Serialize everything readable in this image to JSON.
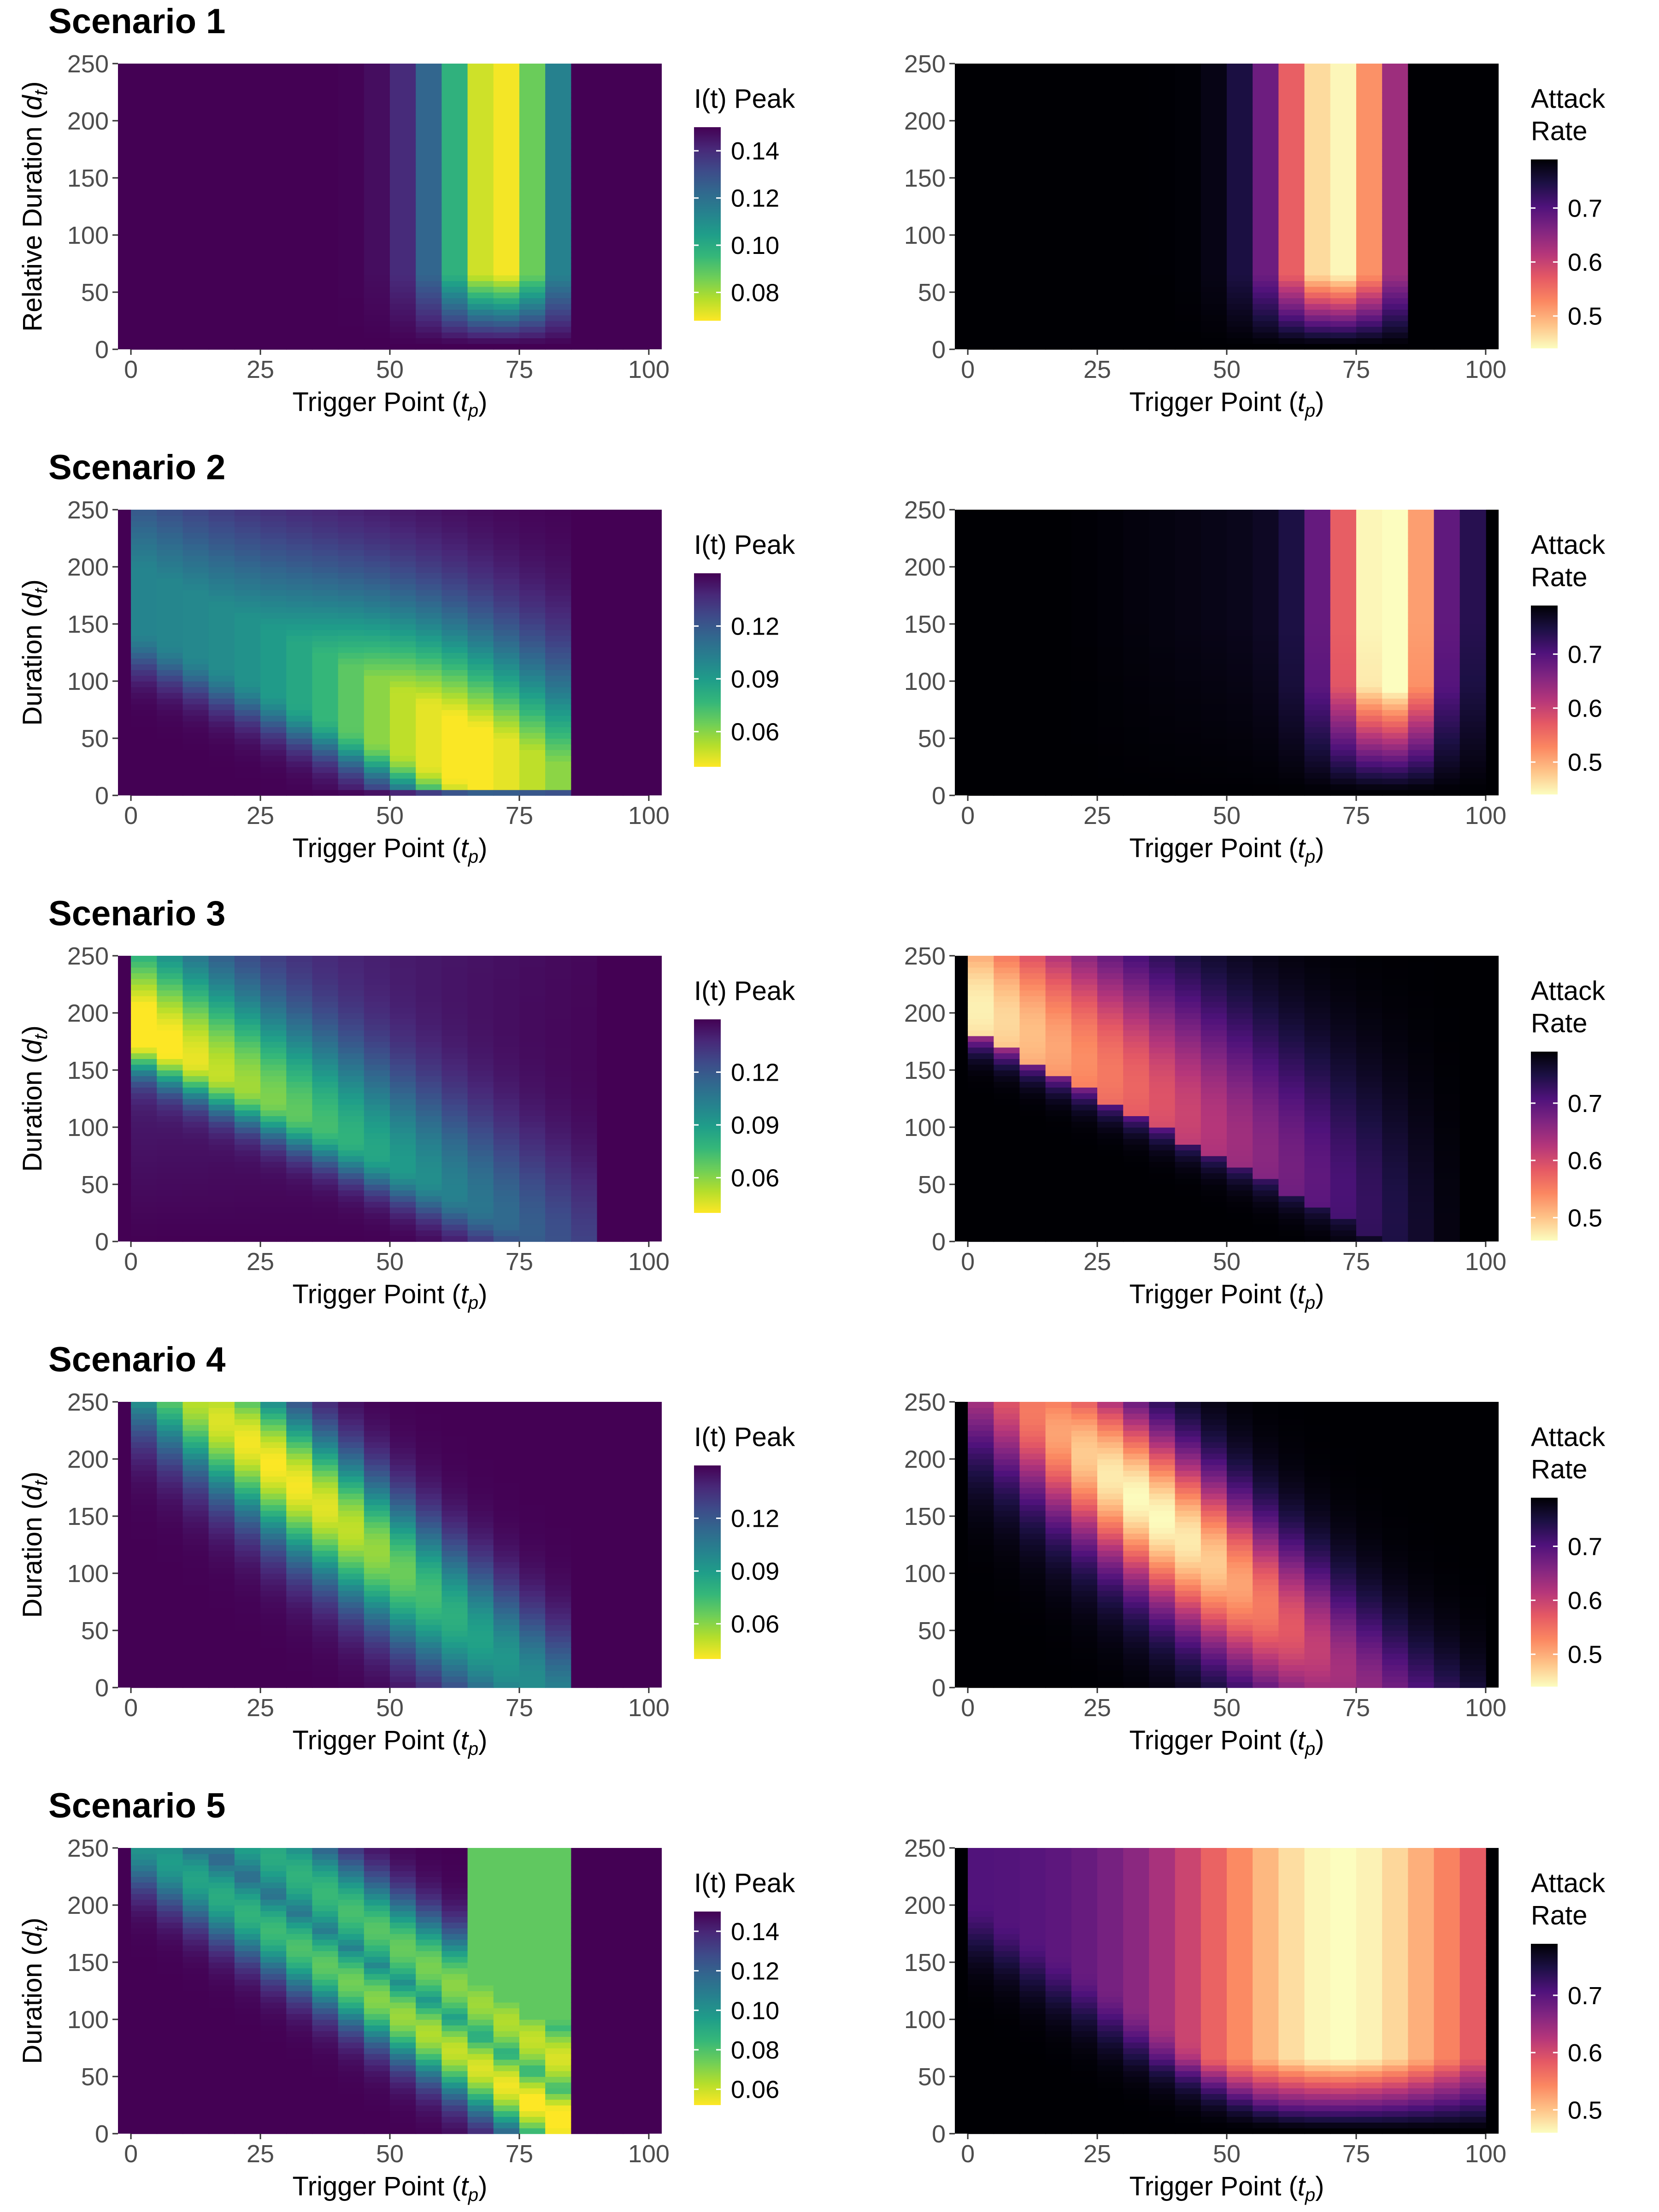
{
  "scenarios": [
    {
      "title": "Scenario 1"
    },
    {
      "title": "Scenario 2"
    },
    {
      "title": "Scenario 3"
    },
    {
      "title": "Scenario 4"
    },
    {
      "title": "Scenario 5"
    }
  ],
  "colors": {
    "viridis": [
      "#440154",
      "#482878",
      "#3e4a89",
      "#31688e",
      "#26828e",
      "#1f9e89",
      "#35b779",
      "#6ece58",
      "#b5de2b",
      "#fde725"
    ],
    "magma": [
      "#000004",
      "#1c1044",
      "#4f127b",
      "#812581",
      "#b5367a",
      "#e55964",
      "#fb8761",
      "#fec287",
      "#fcfdbf"
    ]
  },
  "chart_data": [
    {
      "type": "heatmap",
      "title": "Scenario 1",
      "metric": "I(t) Peak",
      "colormap": "viridis",
      "reverse": true,
      "xlabel": "Trigger Point (t_p)",
      "ylabel": "Relative Duration (d_t)",
      "xlim": [
        0,
        100
      ],
      "ylim": [
        0,
        250
      ],
      "x_ticks": [
        0,
        25,
        50,
        75,
        100
      ],
      "y_ticks": [
        0,
        50,
        100,
        150,
        200,
        250
      ],
      "legend_title": "I(t) Peak",
      "legend_ticks": [
        0.14,
        0.12,
        0.1,
        0.08
      ],
      "legend_tick_labels": [
        "0.14",
        "0.12",
        "0.10",
        "0.08"
      ],
      "value_range": [
        0.068,
        0.15
      ],
      "pattern": "s1",
      "legend_position": "right"
    },
    {
      "type": "heatmap",
      "title": "Scenario 1",
      "metric": "Attack Rate",
      "colormap": "magma",
      "reverse": true,
      "xlabel": "Trigger Point (t_p)",
      "ylabel": "Relative Duration (d_t)",
      "xlim": [
        0,
        100
      ],
      "ylim": [
        0,
        250
      ],
      "x_ticks": [
        0,
        25,
        50,
        75,
        100
      ],
      "y_ticks": [
        0,
        50,
        100,
        150,
        200,
        250
      ],
      "legend_title": [
        "Attack",
        "Rate"
      ],
      "legend_ticks": [
        0.7,
        0.6,
        0.5
      ],
      "legend_tick_labels": [
        "0.7",
        "0.6",
        "0.5"
      ],
      "value_range": [
        0.44,
        0.79
      ],
      "pattern": "s1",
      "legend_position": "right"
    },
    {
      "type": "heatmap",
      "title": "Scenario 2",
      "metric": "I(t) Peak",
      "colormap": "viridis",
      "reverse": true,
      "xlabel": "Trigger Point (t_p)",
      "ylabel": "Duration (d_t)",
      "xlim": [
        0,
        100
      ],
      "ylim": [
        0,
        250
      ],
      "x_ticks": [
        0,
        25,
        50,
        75,
        100
      ],
      "y_ticks": [
        0,
        50,
        100,
        150,
        200,
        250
      ],
      "legend_title": "I(t) Peak",
      "legend_ticks": [
        0.12,
        0.09,
        0.06
      ],
      "legend_tick_labels": [
        "0.12",
        "0.09",
        "0.06"
      ],
      "value_range": [
        0.04,
        0.15
      ],
      "pattern": "s2",
      "legend_position": "right"
    },
    {
      "type": "heatmap",
      "title": "Scenario 2",
      "metric": "Attack Rate",
      "colormap": "magma",
      "reverse": true,
      "xlabel": "Trigger Point (t_p)",
      "ylabel": "Duration (d_t)",
      "xlim": [
        0,
        100
      ],
      "ylim": [
        0,
        250
      ],
      "x_ticks": [
        0,
        25,
        50,
        75,
        100
      ],
      "y_ticks": [
        0,
        50,
        100,
        150,
        200,
        250
      ],
      "legend_title": [
        "Attack",
        "Rate"
      ],
      "legend_ticks": [
        0.7,
        0.6,
        0.5
      ],
      "legend_tick_labels": [
        "0.7",
        "0.6",
        "0.5"
      ],
      "value_range": [
        0.44,
        0.79
      ],
      "pattern": "s2",
      "legend_position": "right"
    },
    {
      "type": "heatmap",
      "title": "Scenario 3",
      "metric": "I(t) Peak",
      "colormap": "viridis",
      "reverse": true,
      "xlabel": "Trigger Point (t_p)",
      "ylabel": "Duration (d_t)",
      "xlim": [
        0,
        100
      ],
      "ylim": [
        0,
        250
      ],
      "x_ticks": [
        0,
        25,
        50,
        75,
        100
      ],
      "y_ticks": [
        0,
        50,
        100,
        150,
        200,
        250
      ],
      "legend_title": "I(t) Peak",
      "legend_ticks": [
        0.12,
        0.09,
        0.06
      ],
      "legend_tick_labels": [
        "0.12",
        "0.09",
        "0.06"
      ],
      "value_range": [
        0.04,
        0.15
      ],
      "pattern": "s3",
      "legend_position": "right"
    },
    {
      "type": "heatmap",
      "title": "Scenario 3",
      "metric": "Attack Rate",
      "colormap": "magma",
      "reverse": true,
      "xlabel": "Trigger Point (t_p)",
      "ylabel": "Duration (d_t)",
      "xlim": [
        0,
        100
      ],
      "ylim": [
        0,
        250
      ],
      "x_ticks": [
        0,
        25,
        50,
        75,
        100
      ],
      "y_ticks": [
        0,
        50,
        100,
        150,
        200,
        250
      ],
      "legend_title": [
        "Attack",
        "Rate"
      ],
      "legend_ticks": [
        0.7,
        0.6,
        0.5
      ],
      "legend_tick_labels": [
        "0.7",
        "0.6",
        "0.5"
      ],
      "value_range": [
        0.46,
        0.79
      ],
      "pattern": "s3",
      "legend_position": "right"
    },
    {
      "type": "heatmap",
      "title": "Scenario 4",
      "metric": "I(t) Peak",
      "colormap": "viridis",
      "reverse": true,
      "xlabel": "Trigger Point (t_p)",
      "ylabel": "Duration (d_t)",
      "xlim": [
        0,
        100
      ],
      "ylim": [
        0,
        250
      ],
      "x_ticks": [
        0,
        25,
        50,
        75,
        100
      ],
      "y_ticks": [
        0,
        50,
        100,
        150,
        200,
        250
      ],
      "legend_title": "I(t) Peak",
      "legend_ticks": [
        0.12,
        0.09,
        0.06
      ],
      "legend_tick_labels": [
        "0.12",
        "0.09",
        "0.06"
      ],
      "value_range": [
        0.04,
        0.15
      ],
      "pattern": "s4",
      "legend_position": "right"
    },
    {
      "type": "heatmap",
      "title": "Scenario 4",
      "metric": "Attack Rate",
      "colormap": "magma",
      "reverse": true,
      "xlabel": "Trigger Point (t_p)",
      "ylabel": "Duration (d_t)",
      "xlim": [
        0,
        100
      ],
      "ylim": [
        0,
        250
      ],
      "x_ticks": [
        0,
        25,
        50,
        75,
        100
      ],
      "y_ticks": [
        0,
        50,
        100,
        150,
        200,
        250
      ],
      "legend_title": [
        "Attack",
        "Rate"
      ],
      "legend_ticks": [
        0.7,
        0.6,
        0.5
      ],
      "legend_tick_labels": [
        "0.7",
        "0.6",
        "0.5"
      ],
      "value_range": [
        0.44,
        0.79
      ],
      "pattern": "s4",
      "legend_position": "right"
    },
    {
      "type": "heatmap",
      "title": "Scenario 5",
      "metric": "I(t) Peak",
      "colormap": "viridis",
      "reverse": true,
      "xlabel": "Trigger Point (t_p)",
      "ylabel": "Duration (d_t)",
      "xlim": [
        0,
        100
      ],
      "ylim": [
        0,
        250
      ],
      "x_ticks": [
        0,
        25,
        50,
        75,
        100
      ],
      "y_ticks": [
        0,
        50,
        100,
        150,
        200,
        250
      ],
      "legend_title": "I(t) Peak",
      "legend_ticks": [
        0.14,
        0.12,
        0.1,
        0.08,
        0.06
      ],
      "legend_tick_labels": [
        "0.14",
        "0.12",
        "0.10",
        "0.08",
        "0.06"
      ],
      "value_range": [
        0.052,
        0.15
      ],
      "pattern": "s5",
      "legend_position": "right"
    },
    {
      "type": "heatmap",
      "title": "Scenario 5",
      "metric": "Attack Rate",
      "colormap": "magma",
      "reverse": true,
      "xlabel": "Trigger Point (t_p)",
      "ylabel": "Duration (d_t)",
      "xlim": [
        0,
        100
      ],
      "ylim": [
        0,
        250
      ],
      "x_ticks": [
        0,
        25,
        50,
        75,
        100
      ],
      "y_ticks": [
        0,
        50,
        100,
        150,
        200,
        250
      ],
      "legend_title": [
        "Attack",
        "Rate"
      ],
      "legend_ticks": [
        0.7,
        0.6,
        0.5
      ],
      "legend_tick_labels": [
        "0.7",
        "0.6",
        "0.5"
      ],
      "value_range": [
        0.46,
        0.79
      ],
      "pattern": "s5",
      "legend_position": "right"
    }
  ]
}
